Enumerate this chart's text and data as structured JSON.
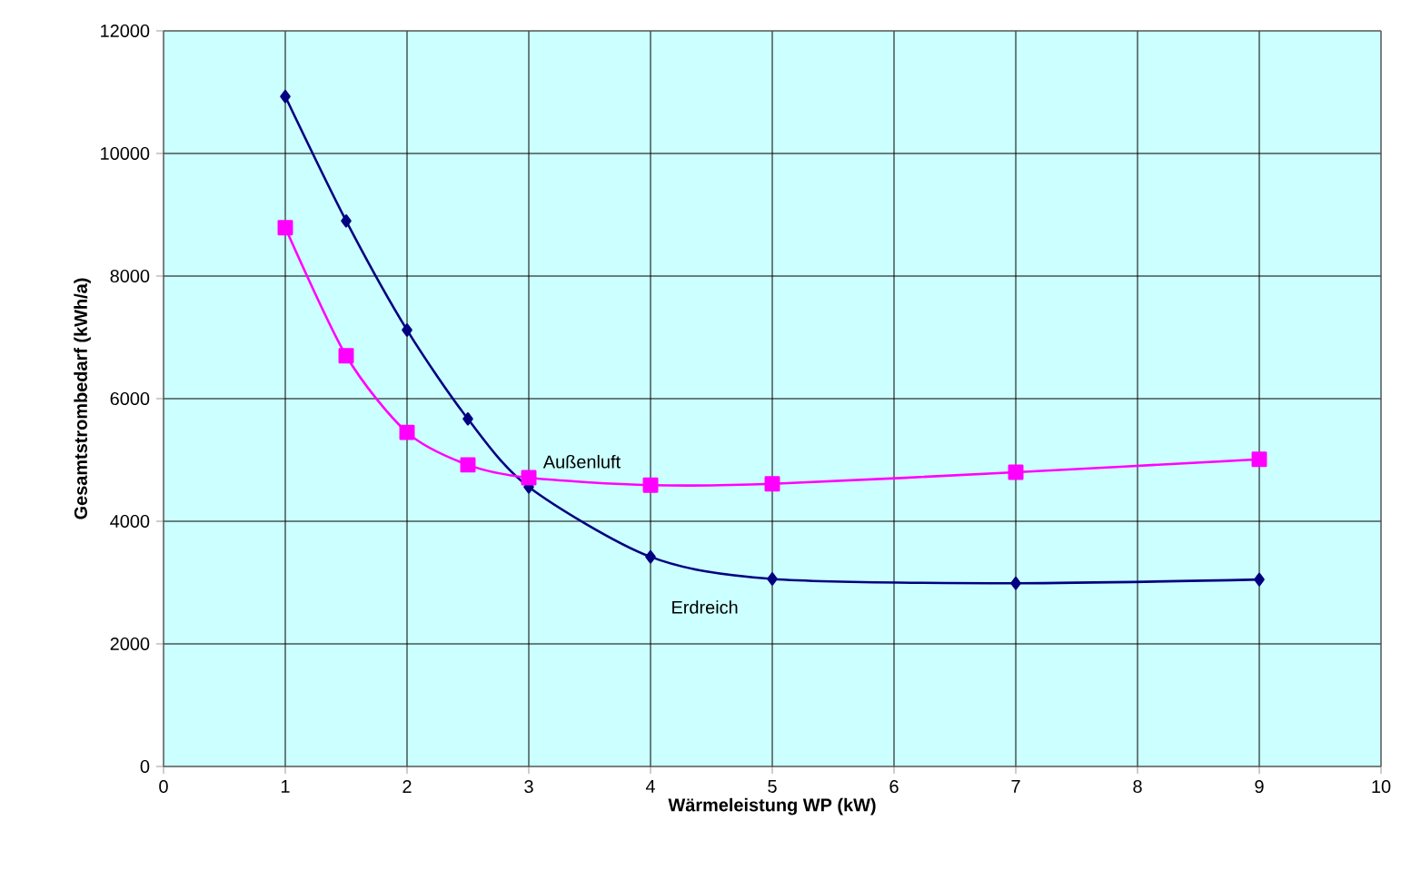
{
  "chart_data": {
    "type": "line",
    "xlabel": "Wärmeleistung WP (kW)",
    "ylabel": "Gesamtstrombedarf (kWh/a)",
    "xlim": [
      0,
      10
    ],
    "xticks": [
      0,
      1,
      2,
      3,
      4,
      5,
      6,
      7,
      8,
      9,
      10
    ],
    "ylim": [
      0,
      12000
    ],
    "yticks": [
      0,
      2000,
      4000,
      6000,
      8000,
      10000,
      12000
    ],
    "grid": true,
    "legend": false,
    "series": [
      {
        "name": "Erdreich",
        "color": "#000080",
        "marker": "diamond",
        "x": [
          1,
          1.5,
          2,
          2.5,
          3,
          4,
          5,
          7,
          9
        ],
        "values": [
          10930,
          8900,
          7120,
          5670,
          4560,
          3420,
          3060,
          2990,
          3050
        ]
      },
      {
        "name": "Außenluft",
        "color": "#ff00ff",
        "marker": "square",
        "x": [
          1,
          1.5,
          2,
          2.5,
          3,
          4,
          5,
          7,
          9
        ],
        "values": [
          8790,
          6700,
          5450,
          4920,
          4710,
          4590,
          4610,
          4800,
          5010
        ]
      }
    ]
  }
}
